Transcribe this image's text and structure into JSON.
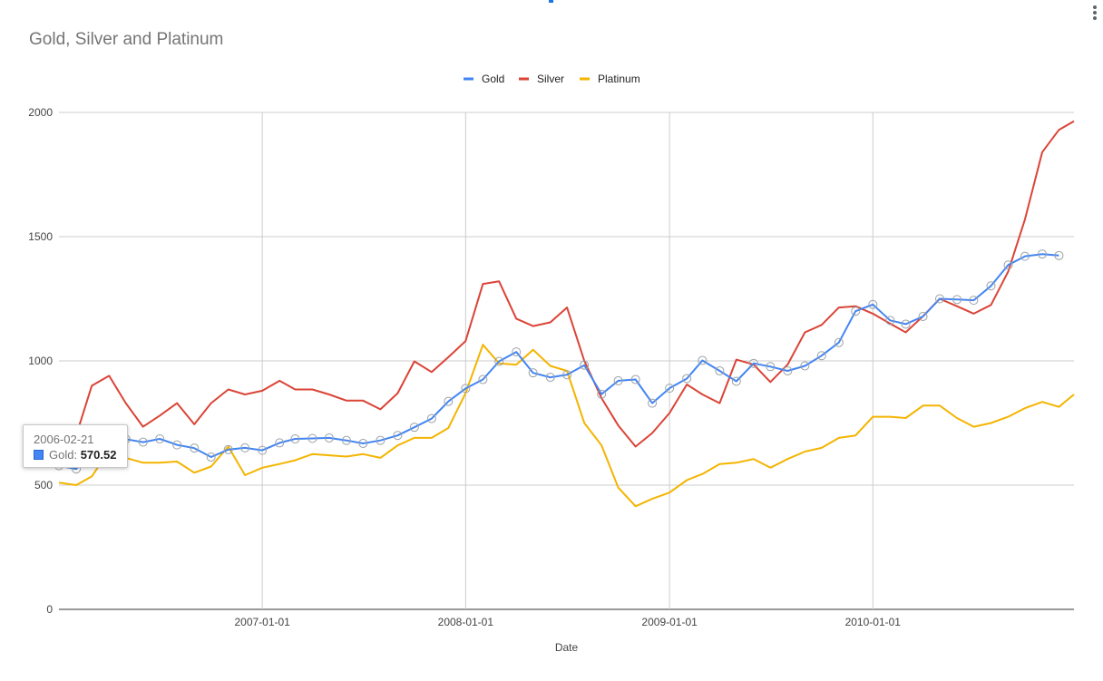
{
  "chart_data": {
    "type": "line",
    "title": "Gold, Silver and Platinum",
    "xlabel": "Date",
    "ylabel": "",
    "ylim": [
      0,
      2000
    ],
    "yticks": [
      "0",
      "500",
      "1000",
      "1500",
      "2000"
    ],
    "xticks": [
      "2007-01-01",
      "2008-01-01",
      "2009-01-01",
      "2010-01-01"
    ],
    "xrange": [
      "2006-01-01",
      "2010-12-01"
    ],
    "grid": true,
    "legend_position": "top-center",
    "series": [
      {
        "name": "Gold",
        "color": "#4285f4",
        "markers": true,
        "points": [
          [
            "2006-01-01",
            578
          ],
          [
            "2006-02-01",
            565
          ],
          [
            "2006-03-01",
            628
          ],
          [
            "2006-04-01",
            669
          ],
          [
            "2006-05-01",
            685
          ],
          [
            "2006-06-01",
            673
          ],
          [
            "2006-07-01",
            686
          ],
          [
            "2006-08-01",
            662
          ],
          [
            "2006-09-01",
            649
          ],
          [
            "2006-10-01",
            613
          ],
          [
            "2006-11-01",
            643
          ],
          [
            "2006-12-01",
            650
          ],
          [
            "2007-01-01",
            640
          ],
          [
            "2007-02-01",
            670
          ],
          [
            "2007-03-01",
            686
          ],
          [
            "2007-04-01",
            688
          ],
          [
            "2007-05-01",
            690
          ],
          [
            "2007-06-01",
            680
          ],
          [
            "2007-07-01",
            668
          ],
          [
            "2007-08-01",
            680
          ],
          [
            "2007-09-01",
            700
          ],
          [
            "2007-10-01",
            733
          ],
          [
            "2007-11-01",
            768
          ],
          [
            "2007-12-01",
            837
          ],
          [
            "2008-01-01",
            889
          ],
          [
            "2008-02-01",
            925
          ],
          [
            "2008-03-01",
            998
          ],
          [
            "2008-04-01",
            1036
          ],
          [
            "2008-05-01",
            952
          ],
          [
            "2008-06-01",
            934
          ],
          [
            "2008-07-01",
            944
          ],
          [
            "2008-08-01",
            983
          ],
          [
            "2008-09-01",
            866
          ],
          [
            "2008-10-01",
            920
          ],
          [
            "2008-11-01",
            925
          ],
          [
            "2008-12-01",
            830
          ],
          [
            "2009-01-01",
            890
          ],
          [
            "2009-02-01",
            929
          ],
          [
            "2009-03-01",
            1002
          ],
          [
            "2009-04-01",
            960
          ],
          [
            "2009-05-01",
            918
          ],
          [
            "2009-06-01",
            990
          ],
          [
            "2009-07-01",
            977
          ],
          [
            "2009-08-01",
            960
          ],
          [
            "2009-09-01",
            980
          ],
          [
            "2009-10-01",
            1021
          ],
          [
            "2009-11-01",
            1074
          ],
          [
            "2009-12-01",
            1200
          ],
          [
            "2010-01-01",
            1227
          ],
          [
            "2010-02-01",
            1163
          ],
          [
            "2010-03-01",
            1148
          ],
          [
            "2010-04-01",
            1179
          ],
          [
            "2010-05-01",
            1250
          ],
          [
            "2010-06-01",
            1247
          ],
          [
            "2010-07-01",
            1244
          ],
          [
            "2010-08-01",
            1302
          ],
          [
            "2010-09-01",
            1386
          ],
          [
            "2010-10-01",
            1421
          ],
          [
            "2010-11-01",
            1430
          ],
          [
            "2010-12-01",
            1424
          ]
        ]
      },
      {
        "name": "Silver",
        "color": "#db4437",
        "markers": false,
        "points": [
          [
            "2006-01-01",
            570
          ],
          [
            "2006-02-01",
            700
          ],
          [
            "2006-03-01",
            900
          ],
          [
            "2006-04-01",
            940
          ],
          [
            "2006-05-01",
            830
          ],
          [
            "2006-06-01",
            735
          ],
          [
            "2006-07-01",
            780
          ],
          [
            "2006-08-01",
            830
          ],
          [
            "2006-09-01",
            745
          ],
          [
            "2006-10-01",
            830
          ],
          [
            "2006-11-01",
            885
          ],
          [
            "2006-12-01",
            865
          ],
          [
            "2007-01-01",
            880
          ],
          [
            "2007-02-01",
            920
          ],
          [
            "2007-03-01",
            885
          ],
          [
            "2007-04-01",
            885
          ],
          [
            "2007-05-01",
            865
          ],
          [
            "2007-06-01",
            840
          ],
          [
            "2007-07-01",
            840
          ],
          [
            "2007-08-01",
            805
          ],
          [
            "2007-09-01",
            870
          ],
          [
            "2007-10-01",
            998
          ],
          [
            "2007-11-01",
            955
          ],
          [
            "2007-12-01",
            1015
          ],
          [
            "2008-01-01",
            1080
          ],
          [
            "2008-02-01",
            1310
          ],
          [
            "2008-03-01",
            1320
          ],
          [
            "2008-04-01",
            1170
          ],
          [
            "2008-05-01",
            1140
          ],
          [
            "2008-06-01",
            1155
          ],
          [
            "2008-07-01",
            1215
          ],
          [
            "2008-08-01",
            1000
          ],
          [
            "2008-09-01",
            850
          ],
          [
            "2008-10-01",
            740
          ],
          [
            "2008-11-01",
            655
          ],
          [
            "2008-12-01",
            710
          ],
          [
            "2009-01-01",
            790
          ],
          [
            "2009-02-01",
            905
          ],
          [
            "2009-03-01",
            865
          ],
          [
            "2009-04-01",
            830
          ],
          [
            "2009-05-01",
            1005
          ],
          [
            "2009-06-01",
            985
          ],
          [
            "2009-07-01",
            915
          ],
          [
            "2009-08-01",
            985
          ],
          [
            "2009-09-01",
            1115
          ],
          [
            "2009-10-01",
            1145
          ],
          [
            "2009-11-01",
            1215
          ],
          [
            "2009-12-01",
            1220
          ],
          [
            "2010-01-01",
            1190
          ],
          [
            "2010-02-01",
            1150
          ],
          [
            "2010-03-01",
            1115
          ],
          [
            "2010-04-01",
            1180
          ],
          [
            "2010-05-01",
            1250
          ],
          [
            "2010-06-01",
            1220
          ],
          [
            "2010-07-01",
            1190
          ],
          [
            "2010-08-01",
            1225
          ],
          [
            "2010-09-01",
            1360
          ],
          [
            "2010-10-01",
            1570
          ],
          [
            "2010-11-01",
            1840
          ],
          [
            "2010-12-01",
            1930
          ],
          [
            "2010-12-28",
            1965
          ]
        ]
      },
      {
        "name": "Platinum",
        "color": "#f4b400",
        "markers": false,
        "points": [
          [
            "2006-01-01",
            510
          ],
          [
            "2006-02-01",
            500
          ],
          [
            "2006-03-01",
            535
          ],
          [
            "2006-04-01",
            640
          ],
          [
            "2006-05-01",
            610
          ],
          [
            "2006-06-01",
            590
          ],
          [
            "2006-07-01",
            590
          ],
          [
            "2006-08-01",
            595
          ],
          [
            "2006-09-01",
            550
          ],
          [
            "2006-10-01",
            575
          ],
          [
            "2006-11-01",
            655
          ],
          [
            "2006-12-01",
            540
          ],
          [
            "2007-01-01",
            570
          ],
          [
            "2007-02-01",
            585
          ],
          [
            "2007-03-01",
            600
          ],
          [
            "2007-04-01",
            625
          ],
          [
            "2007-05-01",
            620
          ],
          [
            "2007-06-01",
            615
          ],
          [
            "2007-07-01",
            625
          ],
          [
            "2007-08-01",
            610
          ],
          [
            "2007-09-01",
            660
          ],
          [
            "2007-10-01",
            690
          ],
          [
            "2007-11-01",
            690
          ],
          [
            "2007-12-01",
            730
          ],
          [
            "2008-01-01",
            870
          ],
          [
            "2008-02-01",
            1065
          ],
          [
            "2008-03-01",
            990
          ],
          [
            "2008-04-01",
            985
          ],
          [
            "2008-05-01",
            1045
          ],
          [
            "2008-06-01",
            980
          ],
          [
            "2008-07-01",
            960
          ],
          [
            "2008-08-01",
            750
          ],
          [
            "2008-09-01",
            660
          ],
          [
            "2008-10-01",
            490
          ],
          [
            "2008-11-01",
            415
          ],
          [
            "2008-12-01",
            445
          ],
          [
            "2009-01-01",
            470
          ],
          [
            "2009-02-01",
            520
          ],
          [
            "2009-03-01",
            545
          ],
          [
            "2009-04-01",
            585
          ],
          [
            "2009-05-01",
            590
          ],
          [
            "2009-06-01",
            605
          ],
          [
            "2009-07-01",
            570
          ],
          [
            "2009-08-01",
            605
          ],
          [
            "2009-09-01",
            635
          ],
          [
            "2009-10-01",
            650
          ],
          [
            "2009-11-01",
            690
          ],
          [
            "2009-12-01",
            700
          ],
          [
            "2010-01-01",
            775
          ],
          [
            "2010-02-01",
            775
          ],
          [
            "2010-03-01",
            770
          ],
          [
            "2010-04-01",
            820
          ],
          [
            "2010-05-01",
            820
          ],
          [
            "2010-06-01",
            770
          ],
          [
            "2010-07-01",
            735
          ],
          [
            "2010-08-01",
            750
          ],
          [
            "2010-09-01",
            775
          ],
          [
            "2010-10-01",
            810
          ],
          [
            "2010-11-01",
            835
          ],
          [
            "2010-12-01",
            815
          ],
          [
            "2010-12-28",
            865
          ]
        ]
      }
    ],
    "tooltip": {
      "date": "2006-02-21",
      "series": "Gold",
      "label": "Gold: ",
      "value": "570.52"
    }
  }
}
